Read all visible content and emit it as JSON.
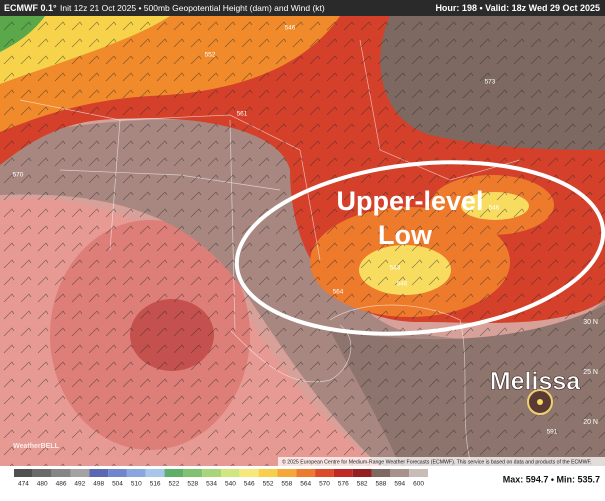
{
  "header": {
    "model": "ECMWF 0.1°",
    "left": "Init 12z 21 Oct 2025 • 500mb Geopotential Height (dam) and Wind (kt)",
    "right": "Hour: 198 • Valid: 18z Wed 29 Oct 2025"
  },
  "annotations": {
    "low": [
      "Upper-level",
      "Low"
    ],
    "storm": "Melissa"
  },
  "latitude_labels": [
    "30 N",
    "25 N",
    "20 N"
  ],
  "contour_labels": [
    "543",
    "546",
    "546",
    "573",
    "561",
    "552",
    "570",
    "564",
    "591",
    "546"
  ],
  "copyright": "© 2025 European Centre for Medium-Range Weather Forecasts (ECMWF). This service is based on data and products of the ECMWF.",
  "logo": "WeatherBELL",
  "colorbar": {
    "ticks": [
      474,
      480,
      486,
      492,
      498,
      504,
      510,
      516,
      522,
      528,
      534,
      540,
      546,
      552,
      558,
      564,
      570,
      576,
      582,
      588,
      594,
      600
    ],
    "colors": [
      "#505050",
      "#6a6a6a",
      "#858585",
      "#a2a2a2",
      "#5a68b4",
      "#6f86cc",
      "#8aa6de",
      "#a8c6ea",
      "#5fae6a",
      "#80c270",
      "#a8d47a",
      "#d2e67e",
      "#f6e87a",
      "#f7cf4b",
      "#f5a83a",
      "#ec7a2f",
      "#dc4a2a",
      "#bf2a25",
      "#962020",
      "#7d6862",
      "#a8918b",
      "#c9bbb6"
    ]
  },
  "stats": "Max: 594.7 • Min: 535.7"
}
